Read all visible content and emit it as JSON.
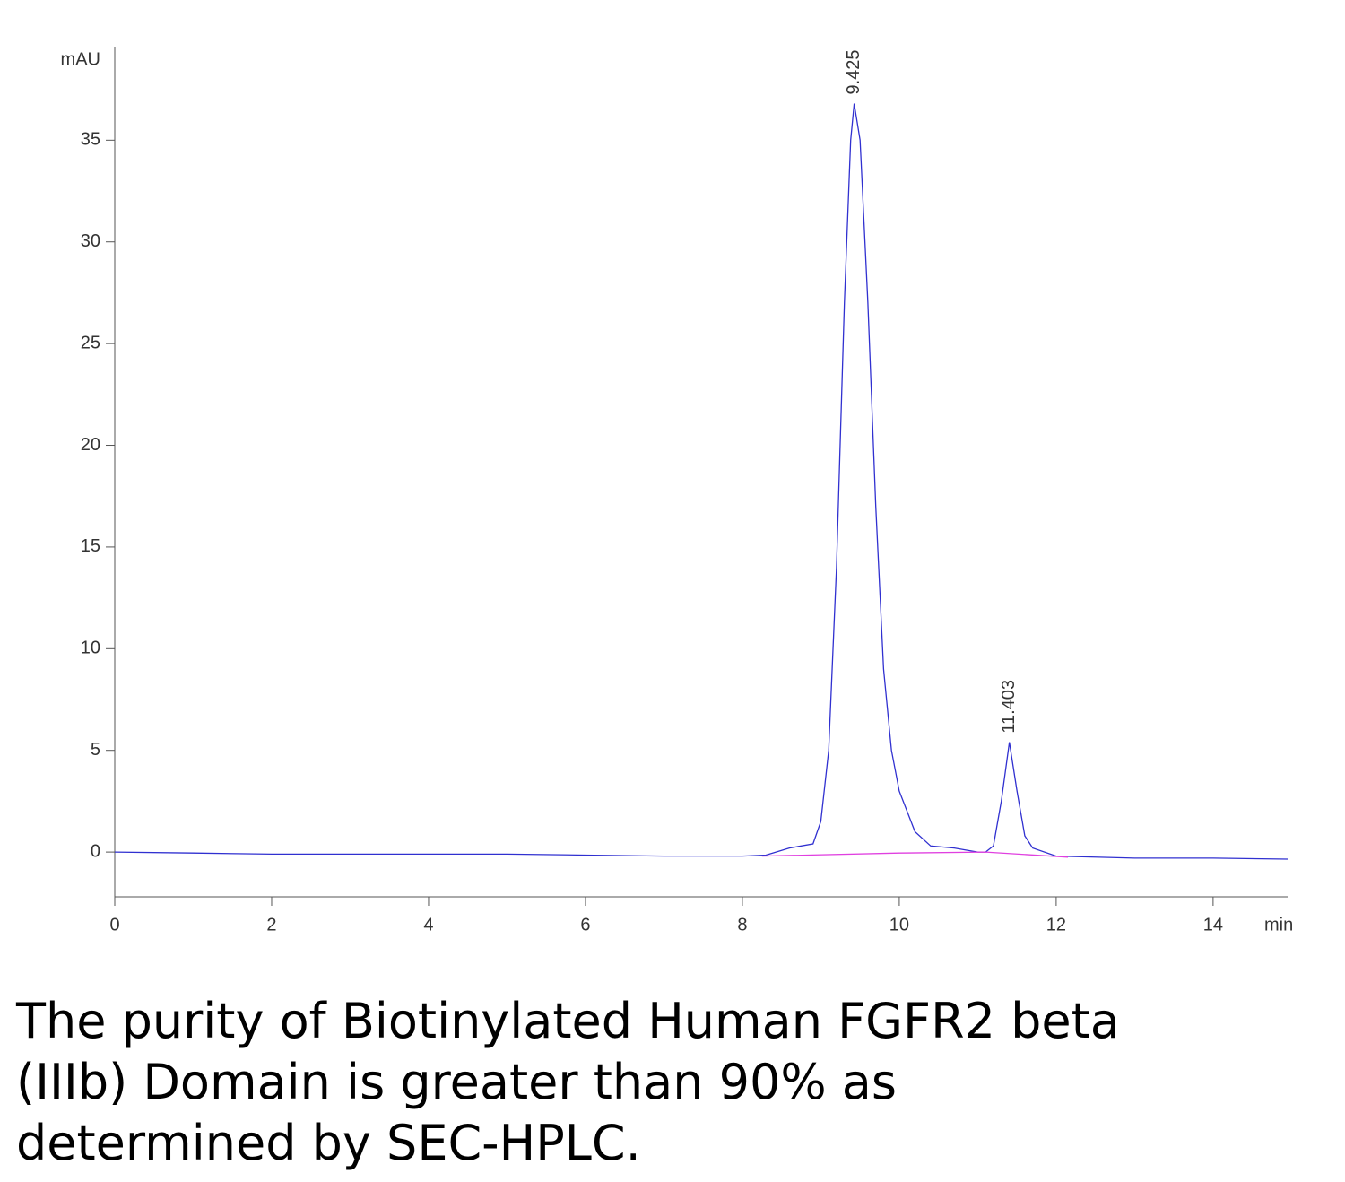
{
  "chart_data": {
    "type": "line",
    "x_label": "min",
    "y_label": "mAU",
    "xlim": [
      0,
      14.95
    ],
    "ylim": [
      -2.2,
      39.6
    ],
    "xticks": [
      0,
      2,
      4,
      6,
      8,
      10,
      12,
      14
    ],
    "yticks": [
      0,
      5,
      10,
      15,
      20,
      25,
      30,
      35
    ],
    "series": [
      {
        "name": "signal",
        "color": "#3030d0",
        "x": [
          0,
          1,
          2,
          3,
          4,
          5,
          6,
          7,
          8,
          8.3,
          8.6,
          8.9,
          9.0,
          9.1,
          9.2,
          9.3,
          9.38,
          9.425,
          9.5,
          9.6,
          9.7,
          9.8,
          9.9,
          10.0,
          10.2,
          10.4,
          10.7,
          11.0,
          11.1,
          11.2,
          11.3,
          11.403,
          11.5,
          11.6,
          11.7,
          12,
          13,
          14,
          14.95
        ],
        "values": [
          0,
          -0.05,
          -0.1,
          -0.1,
          -0.1,
          -0.1,
          -0.15,
          -0.2,
          -0.2,
          -0.15,
          0.2,
          0.4,
          1.5,
          5,
          14,
          27,
          35,
          36.8,
          35,
          27,
          17,
          9,
          5,
          3,
          1.0,
          0.3,
          0.2,
          0,
          0,
          0.3,
          2.5,
          5.4,
          3.0,
          0.8,
          0.2,
          -0.2,
          -0.3,
          -0.3,
          -0.35
        ]
      },
      {
        "name": "baseline",
        "color": "#e040e0",
        "x": [
          8.25,
          10,
          11.1,
          12.15
        ],
        "values": [
          -0.2,
          -0.05,
          0,
          -0.25
        ]
      }
    ],
    "annotations": [
      {
        "x": 9.425,
        "label": "9.425"
      },
      {
        "x": 11.403,
        "label": "11.403"
      }
    ],
    "caption": [
      "The purity of Biotinylated Human FGFR2 beta",
      "(IIIb) Domain is greater than 90% as",
      "determined by SEC-HPLC."
    ]
  }
}
